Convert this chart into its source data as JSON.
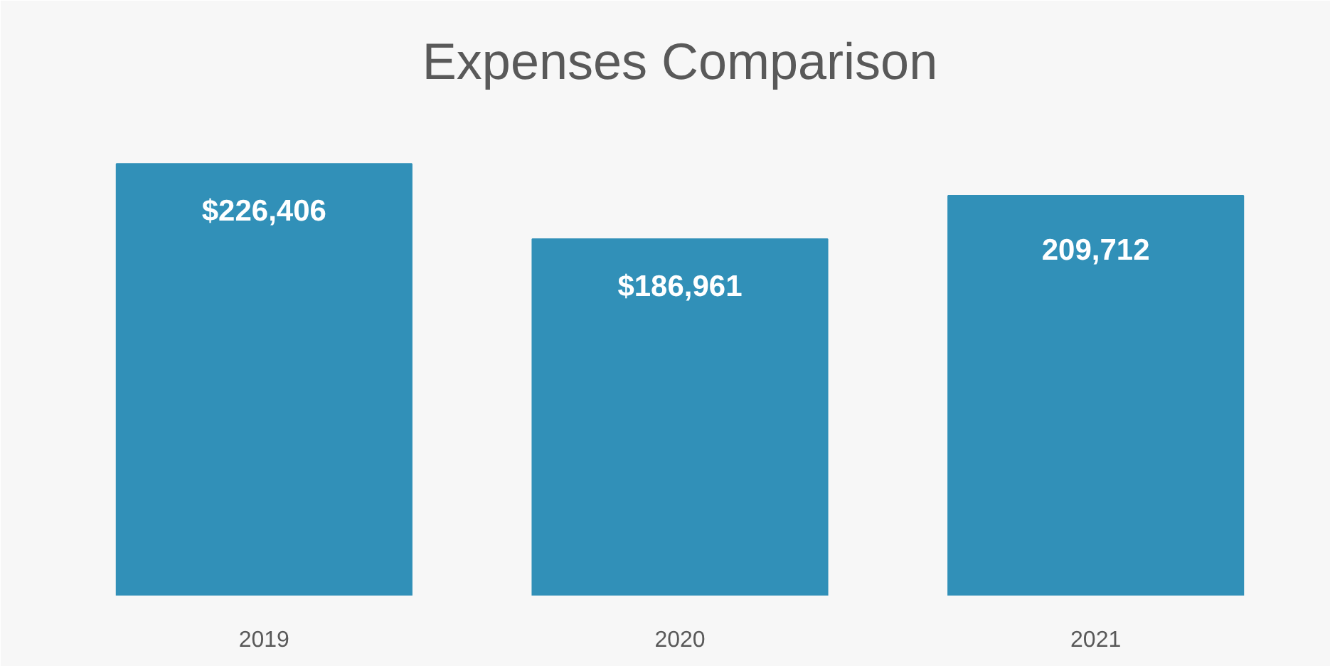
{
  "chart_data": {
    "type": "bar",
    "title": "Expenses Comparison",
    "categories": [
      "2019",
      "2020",
      "2021"
    ],
    "values": [
      226406,
      186961,
      209712
    ],
    "value_labels": [
      "$226,406",
      "$186,961",
      "209,712"
    ],
    "color": "#3190b8",
    "ylim": [
      0,
      250000
    ],
    "tick_labels": "x"
  }
}
